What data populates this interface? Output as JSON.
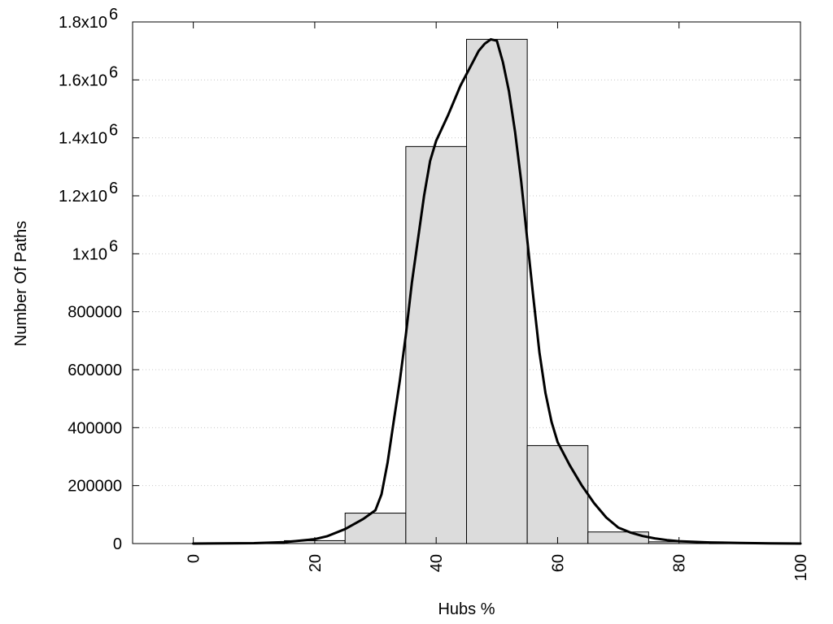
{
  "chart_data": {
    "type": "bar",
    "xlabel": "Hubs %",
    "ylabel": "Number Of Paths",
    "xlim": [
      -10,
      100
    ],
    "ylim": [
      0,
      1800000
    ],
    "x_ticks": [
      0,
      20,
      40,
      60,
      80,
      100
    ],
    "y_ticks": [
      {
        "value": 0,
        "label": "0"
      },
      {
        "value": 200000,
        "label": "200000"
      },
      {
        "value": 400000,
        "label": "400000"
      },
      {
        "value": 600000,
        "label": "600000"
      },
      {
        "value": 800000,
        "label": "800000"
      },
      {
        "value": 1000000,
        "label": "1x10",
        "exp": "6"
      },
      {
        "value": 1200000,
        "label": "1.2x10",
        "exp": "6"
      },
      {
        "value": 1400000,
        "label": "1.4x10",
        "exp": "6"
      },
      {
        "value": 1600000,
        "label": "1.6x10",
        "exp": "6"
      },
      {
        "value": 1800000,
        "label": "1.8x10",
        "exp": "6"
      }
    ],
    "grid": "horizontal-dotted",
    "bars": [
      {
        "x0": 5,
        "x1": 15,
        "value": 1000
      },
      {
        "x0": 15,
        "x1": 25,
        "value": 10000
      },
      {
        "x0": 25,
        "x1": 35,
        "value": 105000
      },
      {
        "x0": 35,
        "x1": 45,
        "value": 1370000
      },
      {
        "x0": 45,
        "x1": 55,
        "value": 1740000
      },
      {
        "x0": 55,
        "x1": 65,
        "value": 338000
      },
      {
        "x0": 65,
        "x1": 75,
        "value": 40000
      },
      {
        "x0": 75,
        "x1": 85,
        "value": 6000
      },
      {
        "x0": 85,
        "x1": 95,
        "value": 1000
      }
    ],
    "curve": {
      "x": [
        0,
        10,
        15,
        20,
        22,
        25,
        28,
        30,
        31,
        32,
        33,
        34,
        35,
        36,
        37,
        38,
        39,
        40,
        42,
        44,
        45,
        46,
        47,
        48,
        49,
        50,
        51,
        52,
        53,
        54,
        55,
        56,
        57,
        58,
        59,
        60,
        62,
        64,
        65,
        66,
        68,
        70,
        72,
        74,
        76,
        78,
        80,
        85,
        90,
        95,
        100
      ],
      "y": [
        0,
        1500,
        5000,
        15000,
        25000,
        50000,
        85000,
        115000,
        170000,
        280000,
        420000,
        560000,
        720000,
        900000,
        1050000,
        1200000,
        1320000,
        1390000,
        1480000,
        1580000,
        1620000,
        1660000,
        1700000,
        1725000,
        1740000,
        1735000,
        1660000,
        1560000,
        1420000,
        1250000,
        1050000,
        850000,
        660000,
        520000,
        420000,
        350000,
        270000,
        200000,
        170000,
        140000,
        90000,
        55000,
        38000,
        26000,
        18000,
        12000,
        8000,
        4000,
        2000,
        800,
        0
      ]
    }
  }
}
